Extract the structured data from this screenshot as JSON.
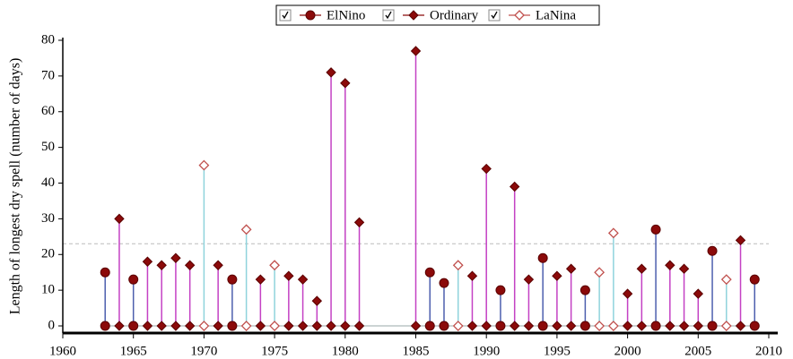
{
  "chart_data": {
    "type": "stem",
    "y_label": "Length of longest dry spell (number of days)",
    "xlim": [
      1960,
      2010
    ],
    "xticks": [
      1960,
      1965,
      1970,
      1975,
      1980,
      1985,
      1990,
      1995,
      2000,
      2005,
      2010
    ],
    "ylim": [
      -2,
      80
    ],
    "yticks": [
      0,
      10,
      20,
      30,
      40,
      50,
      60,
      70,
      80
    ],
    "reference_line": 23,
    "legend": "top",
    "series": [
      {
        "name": "ElNino",
        "color": "#8b0a0a",
        "stem_color": "#4d5fae",
        "marker": "circle",
        "x": [
          1963,
          1965,
          1972,
          1986,
          1987,
          1991,
          1994,
          1997,
          2002,
          2006,
          2009
        ],
        "values": [
          15,
          13,
          13,
          15,
          12,
          10,
          19,
          10,
          27,
          21,
          13
        ]
      },
      {
        "name": "Ordinary",
        "color": "#8b0a0a",
        "stem_color": "#c441c4",
        "marker": "diamond",
        "x": [
          1964,
          1966,
          1967,
          1968,
          1969,
          1971,
          1974,
          1976,
          1977,
          1978,
          1979,
          1980,
          1981,
          1985,
          1989,
          1990,
          1992,
          1993,
          1995,
          1996,
          2000,
          2001,
          2003,
          2004,
          2005,
          2008
        ],
        "values": [
          30,
          18,
          17,
          19,
          17,
          17,
          13,
          14,
          13,
          7,
          71,
          68,
          29,
          77,
          14,
          44,
          39,
          13,
          14,
          16,
          9,
          16,
          17,
          16,
          9,
          24
        ]
      },
      {
        "name": "LaNina",
        "color": "#c0504d",
        "stem_color": "#8fd3dc",
        "marker": "open-diamond",
        "x": [
          1970,
          1973,
          1975,
          1988,
          1998,
          1999,
          2007
        ],
        "values": [
          45,
          27,
          17,
          17,
          15,
          26,
          13
        ]
      }
    ]
  }
}
